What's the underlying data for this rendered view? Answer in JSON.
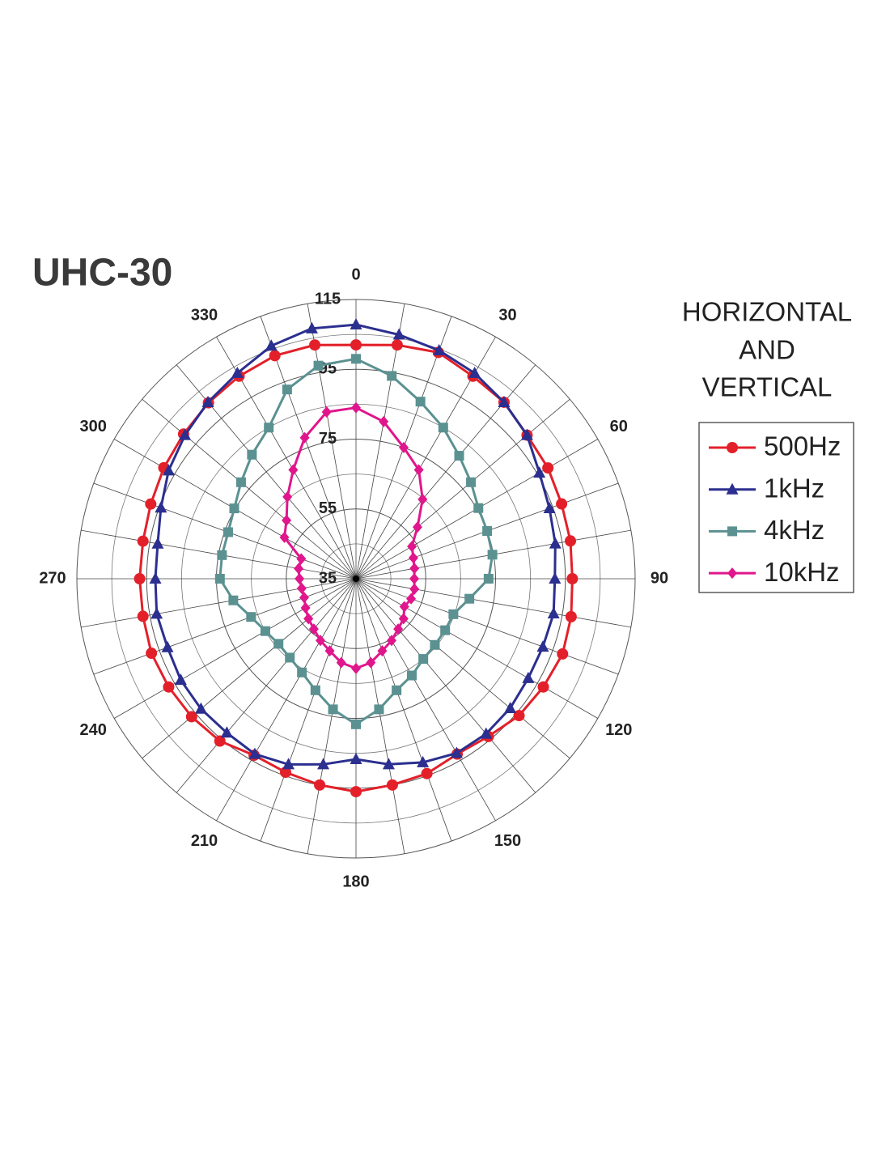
{
  "chart_data": {
    "type": "polar",
    "title": "UHC-30",
    "subtitle": [
      "HORIZONTAL",
      "AND",
      "VERTICAL"
    ],
    "theta": [
      0,
      10,
      20,
      30,
      40,
      50,
      60,
      70,
      80,
      90,
      100,
      110,
      120,
      130,
      140,
      150,
      160,
      170,
      180,
      190,
      200,
      210,
      220,
      230,
      240,
      250,
      260,
      270,
      280,
      290,
      300,
      310,
      320,
      330,
      340,
      350
    ],
    "thetaticks": [
      0,
      30,
      60,
      90,
      120,
      150,
      180,
      210,
      240,
      270,
      300,
      330
    ],
    "rlim": [
      35,
      115
    ],
    "rticks": [
      35,
      55,
      75,
      95,
      115
    ],
    "grid": true,
    "legend": "right",
    "series": [
      {
        "name": "500Hz",
        "color": "#e3202a",
        "marker": "circle",
        "values": [
          102,
          103,
          104,
          102,
          101,
          99,
          98.5,
          97.7,
          97.4,
          97,
          97.6,
          98,
          97,
          96,
          94,
          93,
          94.4,
          95,
          96,
          95,
          94,
          93.4,
          95.7,
          96.5,
          97,
          97.4,
          97,
          97,
          97,
          97.6,
          98.6,
          99.5,
          100.8,
          102,
          103,
          103
        ]
      },
      {
        "name": "1kHz",
        "color": "#2b2f8f",
        "marker": "triangle",
        "values": [
          107.8,
          106,
          104.6,
          103,
          101,
          99,
          95.7,
          94,
          93,
          92,
          92.5,
          92,
          92,
          92.7,
          93,
          92.7,
          91,
          89,
          86.7,
          89,
          91.6,
          93,
          92.6,
          93,
          93,
          92.5,
          93,
          92.5,
          92.7,
          94.5,
          97,
          99,
          101,
          103,
          106,
          107.8
        ]
      },
      {
        "name": "4kHz",
        "color": "#5b9191",
        "marker": "square",
        "values": [
          98,
          94,
          89,
          85,
          81,
          78,
          75.5,
          75,
          74.7,
          73,
          68,
          64.7,
          64.5,
          64.5,
          65,
          67,
          69,
          73,
          76.7,
          73,
          69,
          66,
          64.5,
          64,
          65,
          67,
          70.7,
          74,
          74,
          74,
          75.3,
          78,
          81.4,
          85,
          92.7,
          97
        ]
      },
      {
        "name": "10kHz",
        "color": "#e0168c",
        "marker": "diamond",
        "values": [
          84,
          80.7,
          75,
          71,
          64.7,
          58,
          53.5,
          52.5,
          52,
          51.7,
          52,
          51.8,
          51,
          52.8,
          53.8,
          55.4,
          57,
          59.4,
          60.7,
          59.4,
          57,
          55.4,
          53.8,
          52.8,
          51.7,
          50.8,
          50.8,
          51.2,
          51.7,
          51.7,
          58.7,
          61,
          65.6,
          71,
          78,
          83.5
        ]
      }
    ]
  }
}
